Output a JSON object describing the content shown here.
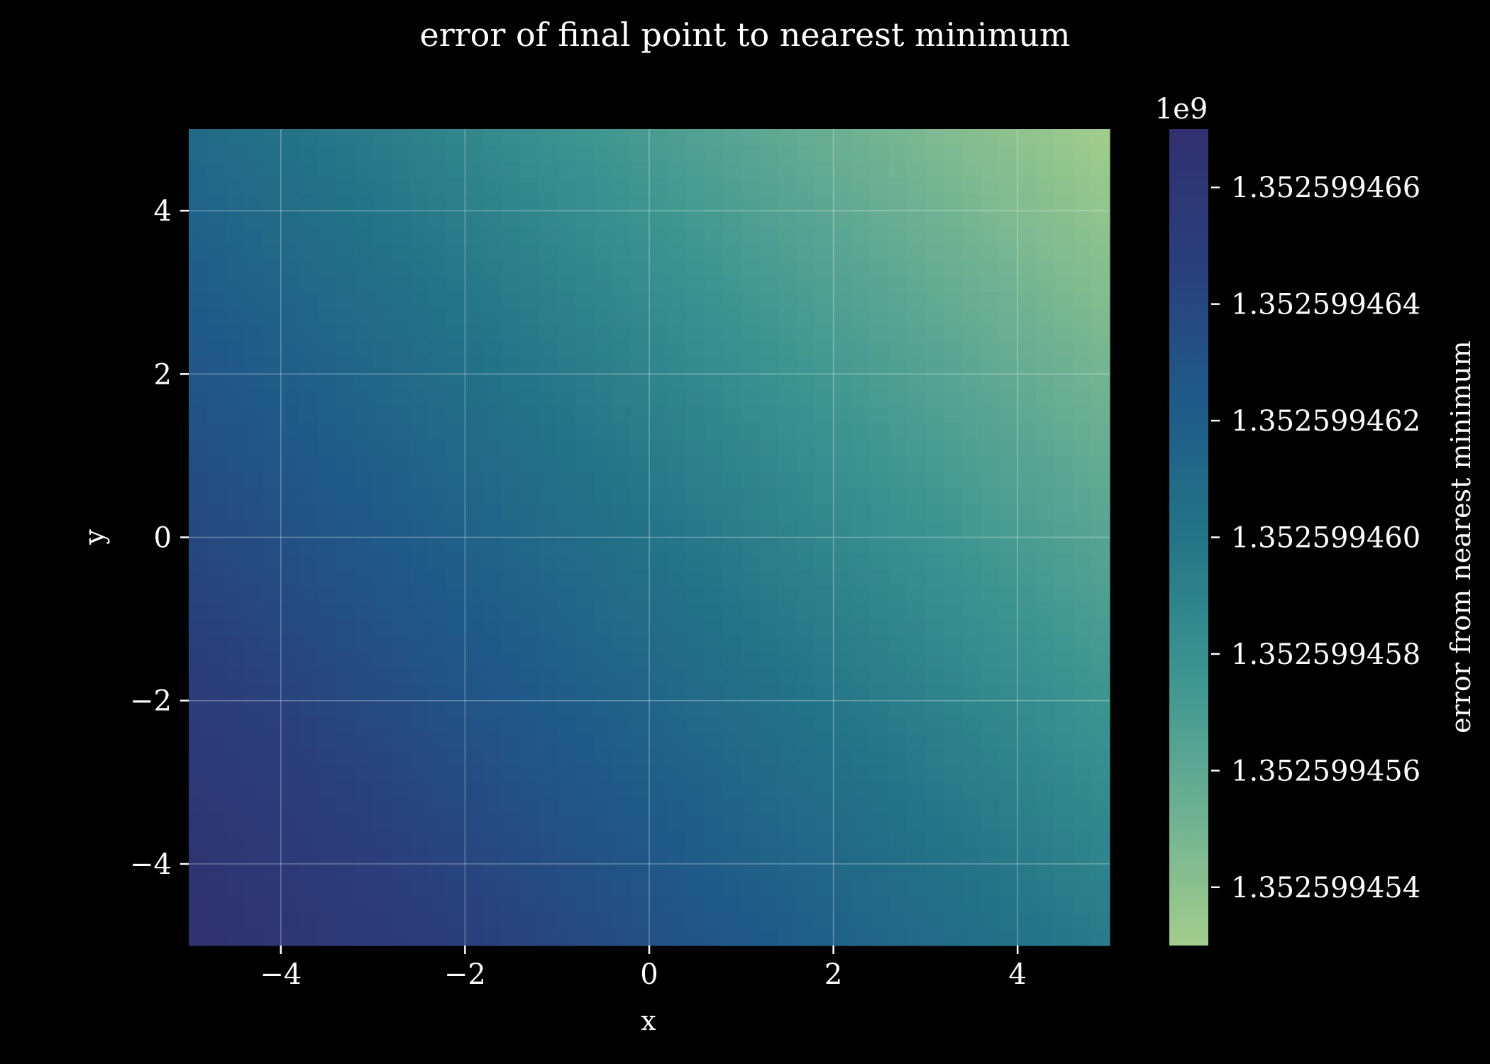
{
  "chart_data": {
    "type": "heatmap",
    "title": "error of final point to nearest minimum",
    "xlabel": "x",
    "ylabel": "y",
    "xlim": [
      -5,
      5
    ],
    "ylim": [
      -5,
      5
    ],
    "x_ticks": [
      -4,
      -2,
      0,
      2,
      4
    ],
    "y_ticks": [
      -4,
      -2,
      0,
      2,
      4
    ],
    "x_tick_labels": [
      "−4",
      "−2",
      "0",
      "2",
      "4"
    ],
    "y_tick_labels": [
      "−4",
      "−2",
      "0",
      "2",
      "4"
    ],
    "grid": true,
    "colorbar": {
      "label": "error from nearest minimum",
      "offset_label": "1e9",
      "range": [
        1.352599453,
        1.352599467
      ],
      "ticks": [
        1.352599466,
        1.352599464,
        1.352599462,
        1.35259946,
        1.352599458,
        1.352599456,
        1.352599454
      ],
      "tick_labels": [
        "1.352599466",
        "1.352599464",
        "1.352599462",
        "1.352599460",
        "1.352599458",
        "1.352599456",
        "1.352599454"
      ],
      "colormap": "crest",
      "colors_low_to_high": [
        "#a3cd8c",
        "#6cb093",
        "#3c9490",
        "#247487",
        "#1f5a88",
        "#2a3f7c",
        "#30306d"
      ]
    },
    "field": {
      "description": "value at corners in colorbar units",
      "corners": {
        "x_min_y_min": 1.352599467,
        "x_max_y_min": 1.3525994595,
        "x_min_y_max": 1.352599461,
        "x_max_y_max": 1.352599453
      }
    }
  }
}
